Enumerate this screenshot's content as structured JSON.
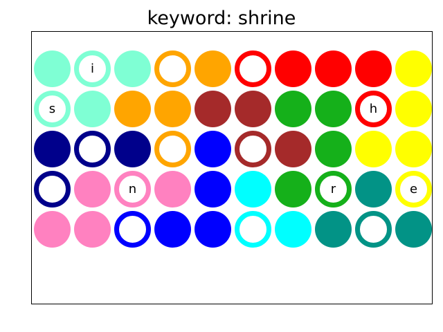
{
  "title": "keyword: shrine",
  "grid": {
    "rows": 5,
    "cols": 10,
    "cells": [
      [
        {
          "color": "#7fffd4",
          "style": "filled",
          "letter": ""
        },
        {
          "color": "#7fffd4",
          "style": "ring",
          "letter": "i"
        },
        {
          "color": "#7fffd4",
          "style": "filled",
          "letter": ""
        },
        {
          "color": "#ffa500",
          "style": "ring",
          "letter": ""
        },
        {
          "color": "#ffa500",
          "style": "filled",
          "letter": ""
        },
        {
          "color": "#ff0000",
          "style": "ring",
          "letter": ""
        },
        {
          "color": "#ff0000",
          "style": "filled",
          "letter": ""
        },
        {
          "color": "#ff0000",
          "style": "filled",
          "letter": ""
        },
        {
          "color": "#ff0000",
          "style": "filled",
          "letter": ""
        },
        {
          "color": "#ffff00",
          "style": "filled",
          "letter": ""
        }
      ],
      [
        {
          "color": "#7fffd4",
          "style": "ring",
          "letter": "s"
        },
        {
          "color": "#7fffd4",
          "style": "filled",
          "letter": ""
        },
        {
          "color": "#ffa500",
          "style": "filled",
          "letter": ""
        },
        {
          "color": "#ffa500",
          "style": "filled",
          "letter": ""
        },
        {
          "color": "#a52a2a",
          "style": "filled",
          "letter": ""
        },
        {
          "color": "#a52a2a",
          "style": "filled",
          "letter": ""
        },
        {
          "color": "#15b01a",
          "style": "filled",
          "letter": ""
        },
        {
          "color": "#15b01a",
          "style": "filled",
          "letter": ""
        },
        {
          "color": "#ff0000",
          "style": "ring",
          "letter": "h"
        },
        {
          "color": "#ffff00",
          "style": "filled",
          "letter": ""
        }
      ],
      [
        {
          "color": "#00008b",
          "style": "filled",
          "letter": ""
        },
        {
          "color": "#00008b",
          "style": "ring",
          "letter": ""
        },
        {
          "color": "#00008b",
          "style": "filled",
          "letter": ""
        },
        {
          "color": "#ffa500",
          "style": "ring",
          "letter": ""
        },
        {
          "color": "#0000ff",
          "style": "filled",
          "letter": ""
        },
        {
          "color": "#a52a2a",
          "style": "ring",
          "letter": ""
        },
        {
          "color": "#a52a2a",
          "style": "filled",
          "letter": ""
        },
        {
          "color": "#15b01a",
          "style": "filled",
          "letter": ""
        },
        {
          "color": "#ffff00",
          "style": "filled",
          "letter": ""
        },
        {
          "color": "#ffff00",
          "style": "filled",
          "letter": ""
        }
      ],
      [
        {
          "color": "#00008b",
          "style": "ring",
          "letter": ""
        },
        {
          "color": "#ff81c0",
          "style": "filled",
          "letter": ""
        },
        {
          "color": "#ff81c0",
          "style": "ring",
          "letter": "n"
        },
        {
          "color": "#ff81c0",
          "style": "filled",
          "letter": ""
        },
        {
          "color": "#0000ff",
          "style": "filled",
          "letter": ""
        },
        {
          "color": "#00ffff",
          "style": "filled",
          "letter": ""
        },
        {
          "color": "#15b01a",
          "style": "filled",
          "letter": ""
        },
        {
          "color": "#15b01a",
          "style": "ring",
          "letter": "r"
        },
        {
          "color": "#029386",
          "style": "filled",
          "letter": ""
        },
        {
          "color": "#ffff00",
          "style": "ring",
          "letter": "e"
        }
      ],
      [
        {
          "color": "#ff81c0",
          "style": "filled",
          "letter": ""
        },
        {
          "color": "#ff81c0",
          "style": "filled",
          "letter": ""
        },
        {
          "color": "#0000ff",
          "style": "ring",
          "letter": ""
        },
        {
          "color": "#0000ff",
          "style": "filled",
          "letter": ""
        },
        {
          "color": "#0000ff",
          "style": "filled",
          "letter": ""
        },
        {
          "color": "#00ffff",
          "style": "ring",
          "letter": ""
        },
        {
          "color": "#00ffff",
          "style": "filled",
          "letter": ""
        },
        {
          "color": "#029386",
          "style": "filled",
          "letter": ""
        },
        {
          "color": "#029386",
          "style": "ring",
          "letter": ""
        },
        {
          "color": "#029386",
          "style": "filled",
          "letter": ""
        }
      ]
    ]
  }
}
